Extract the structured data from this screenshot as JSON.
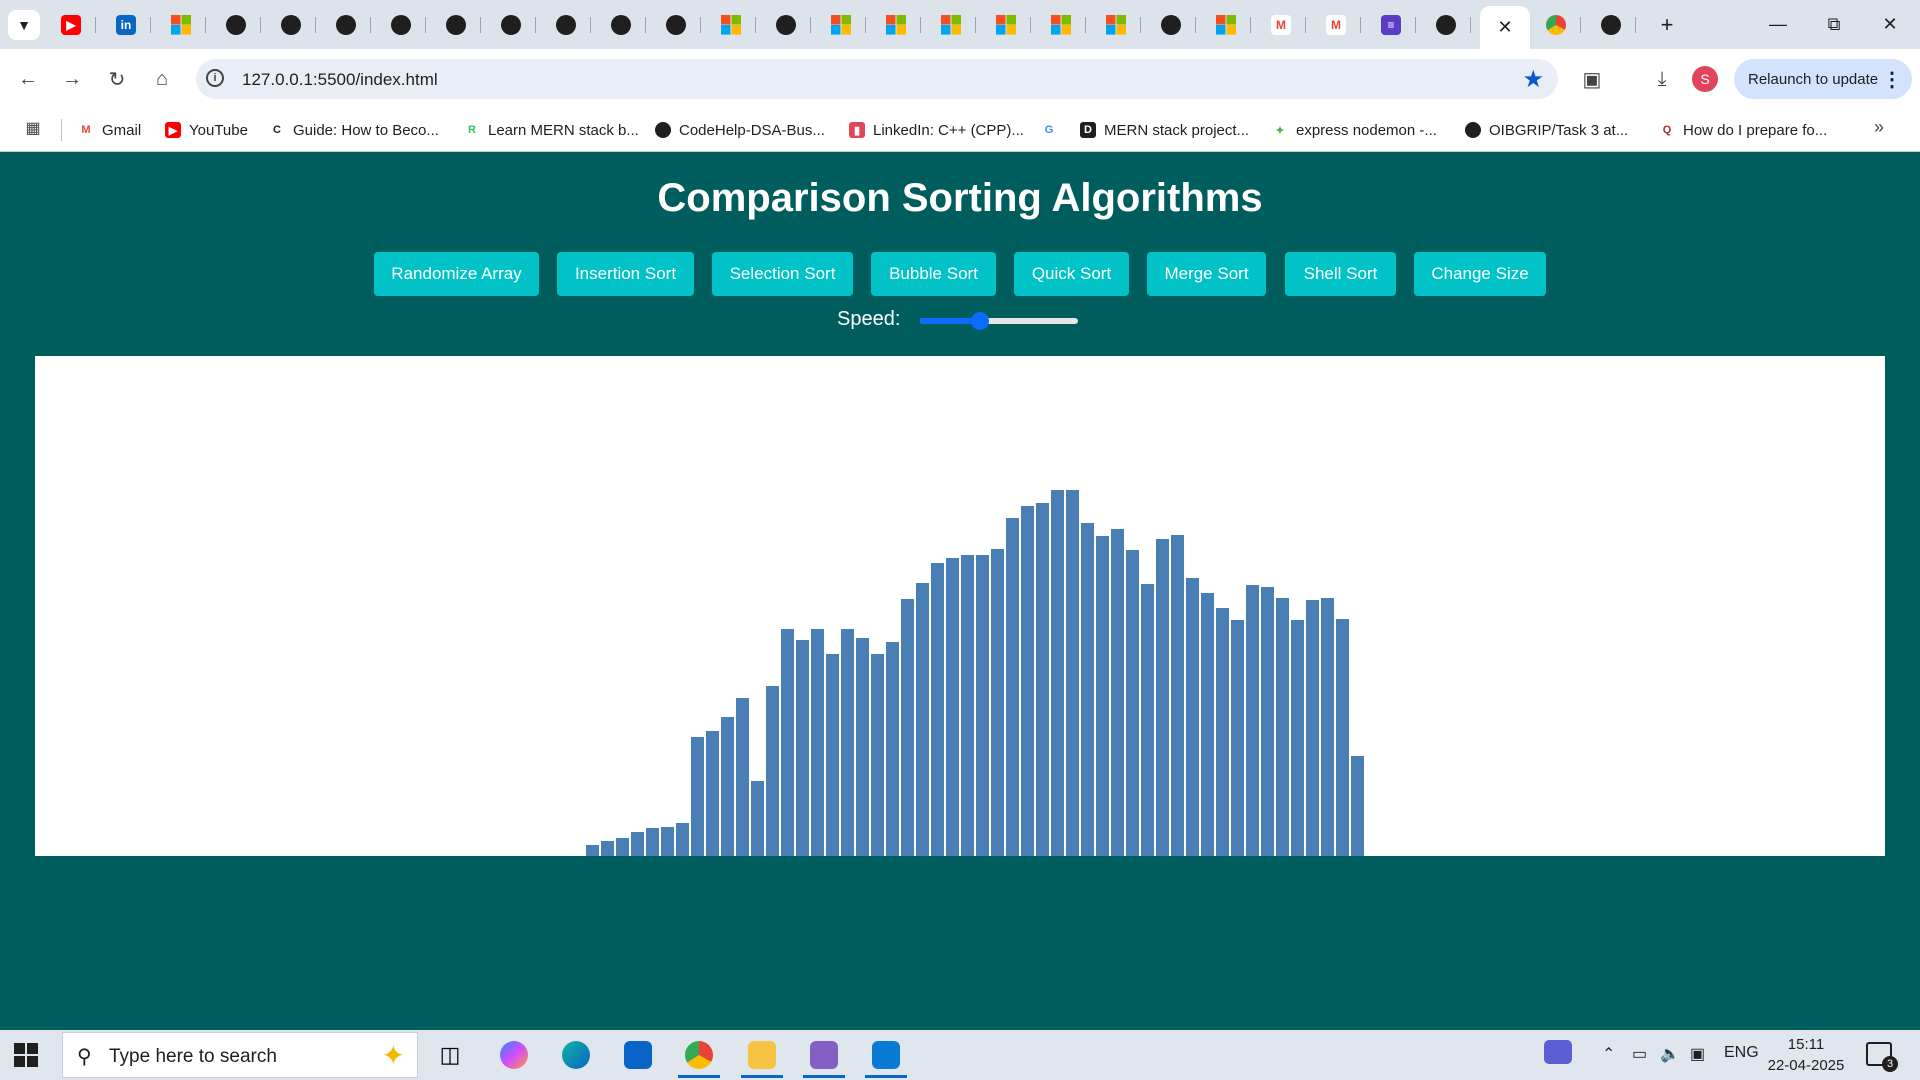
{
  "browser": {
    "tab_favicons": [
      "youtube-icon",
      "linkedin-icon",
      "microsoft-icon",
      "github-icon",
      "github-icon",
      "github-icon",
      "github-icon",
      "github-icon",
      "github-icon",
      "github-icon",
      "circle-icon",
      "github-icon",
      "microsoft-icon",
      "circle-icon",
      "microsoft-icon",
      "microsoft-icon",
      "microsoft-icon",
      "microsoft-icon",
      "microsoft-icon",
      "microsoft-icon",
      "circle-icon",
      "microsoft-icon",
      "gmail-icon",
      "gmail-icon",
      "tasks-icon",
      "chatgpt-icon",
      "active-tab",
      "chrome-icon",
      "github-icon"
    ],
    "url": "127.0.0.1:5500/index.html",
    "relaunch_label": "Relaunch to update",
    "profile_initial": "S",
    "bookmarks": [
      {
        "label": "Gmail",
        "icon": "gmail-icon"
      },
      {
        "label": "YouTube",
        "icon": "youtube-icon"
      },
      {
        "label": "Guide: How to Beco...",
        "icon": "codecademy-icon"
      },
      {
        "label": "Learn MERN stack b...",
        "icon": "r-icon"
      },
      {
        "label": "CodeHelp-DSA-Bus...",
        "icon": "github-icon"
      },
      {
        "label": "LinkedIn: C++ (CPP)...",
        "icon": "bookmark-icon"
      },
      {
        "label": "",
        "icon": "google-icon"
      },
      {
        "label": "MERN stack project...",
        "icon": "dev-icon"
      },
      {
        "label": "express nodemon -...",
        "icon": "express-icon"
      },
      {
        "label": "OIBGRIP/Task 3 at...",
        "icon": "github-icon"
      },
      {
        "label": "How do I prepare fo...",
        "icon": "quora-icon"
      }
    ]
  },
  "app": {
    "title": "Comparison Sorting Algorithms",
    "buttons": [
      {
        "id": "randomize",
        "label": "Randomize Array"
      },
      {
        "id": "insertion",
        "label": "Insertion Sort"
      },
      {
        "id": "selection",
        "label": "Selection Sort"
      },
      {
        "id": "bubble",
        "label": "Bubble Sort"
      },
      {
        "id": "quick",
        "label": "Quick Sort"
      },
      {
        "id": "merge",
        "label": "Merge Sort"
      },
      {
        "id": "shell",
        "label": "Shell Sort"
      },
      {
        "id": "size",
        "label": "Change Size"
      }
    ],
    "speed_label": "Speed:",
    "speed_value": 0.38,
    "bar_color": "#4a7fb5",
    "array_values": [
      9,
      12,
      14,
      19,
      22,
      23,
      26,
      95,
      100,
      111,
      126,
      60,
      136,
      181,
      172,
      181,
      161,
      181,
      174,
      161,
      171,
      205,
      218,
      234,
      238,
      240,
      240,
      245,
      270,
      279,
      282,
      292,
      292,
      266,
      255,
      261,
      244,
      217,
      253,
      256,
      222,
      210,
      198,
      188,
      216,
      215,
      206,
      188,
      204,
      206,
      189,
      80
    ]
  },
  "taskbar": {
    "search_placeholder": "Type here to search",
    "apps": [
      "copilot-icon",
      "edge-icon",
      "outlook-icon",
      "chrome-icon",
      "file-explorer-icon",
      "visual-studio-icon",
      "vscode-icon"
    ],
    "language": "ENG",
    "time": "15:11",
    "date": "22-04-2025",
    "notification_count": "3"
  }
}
